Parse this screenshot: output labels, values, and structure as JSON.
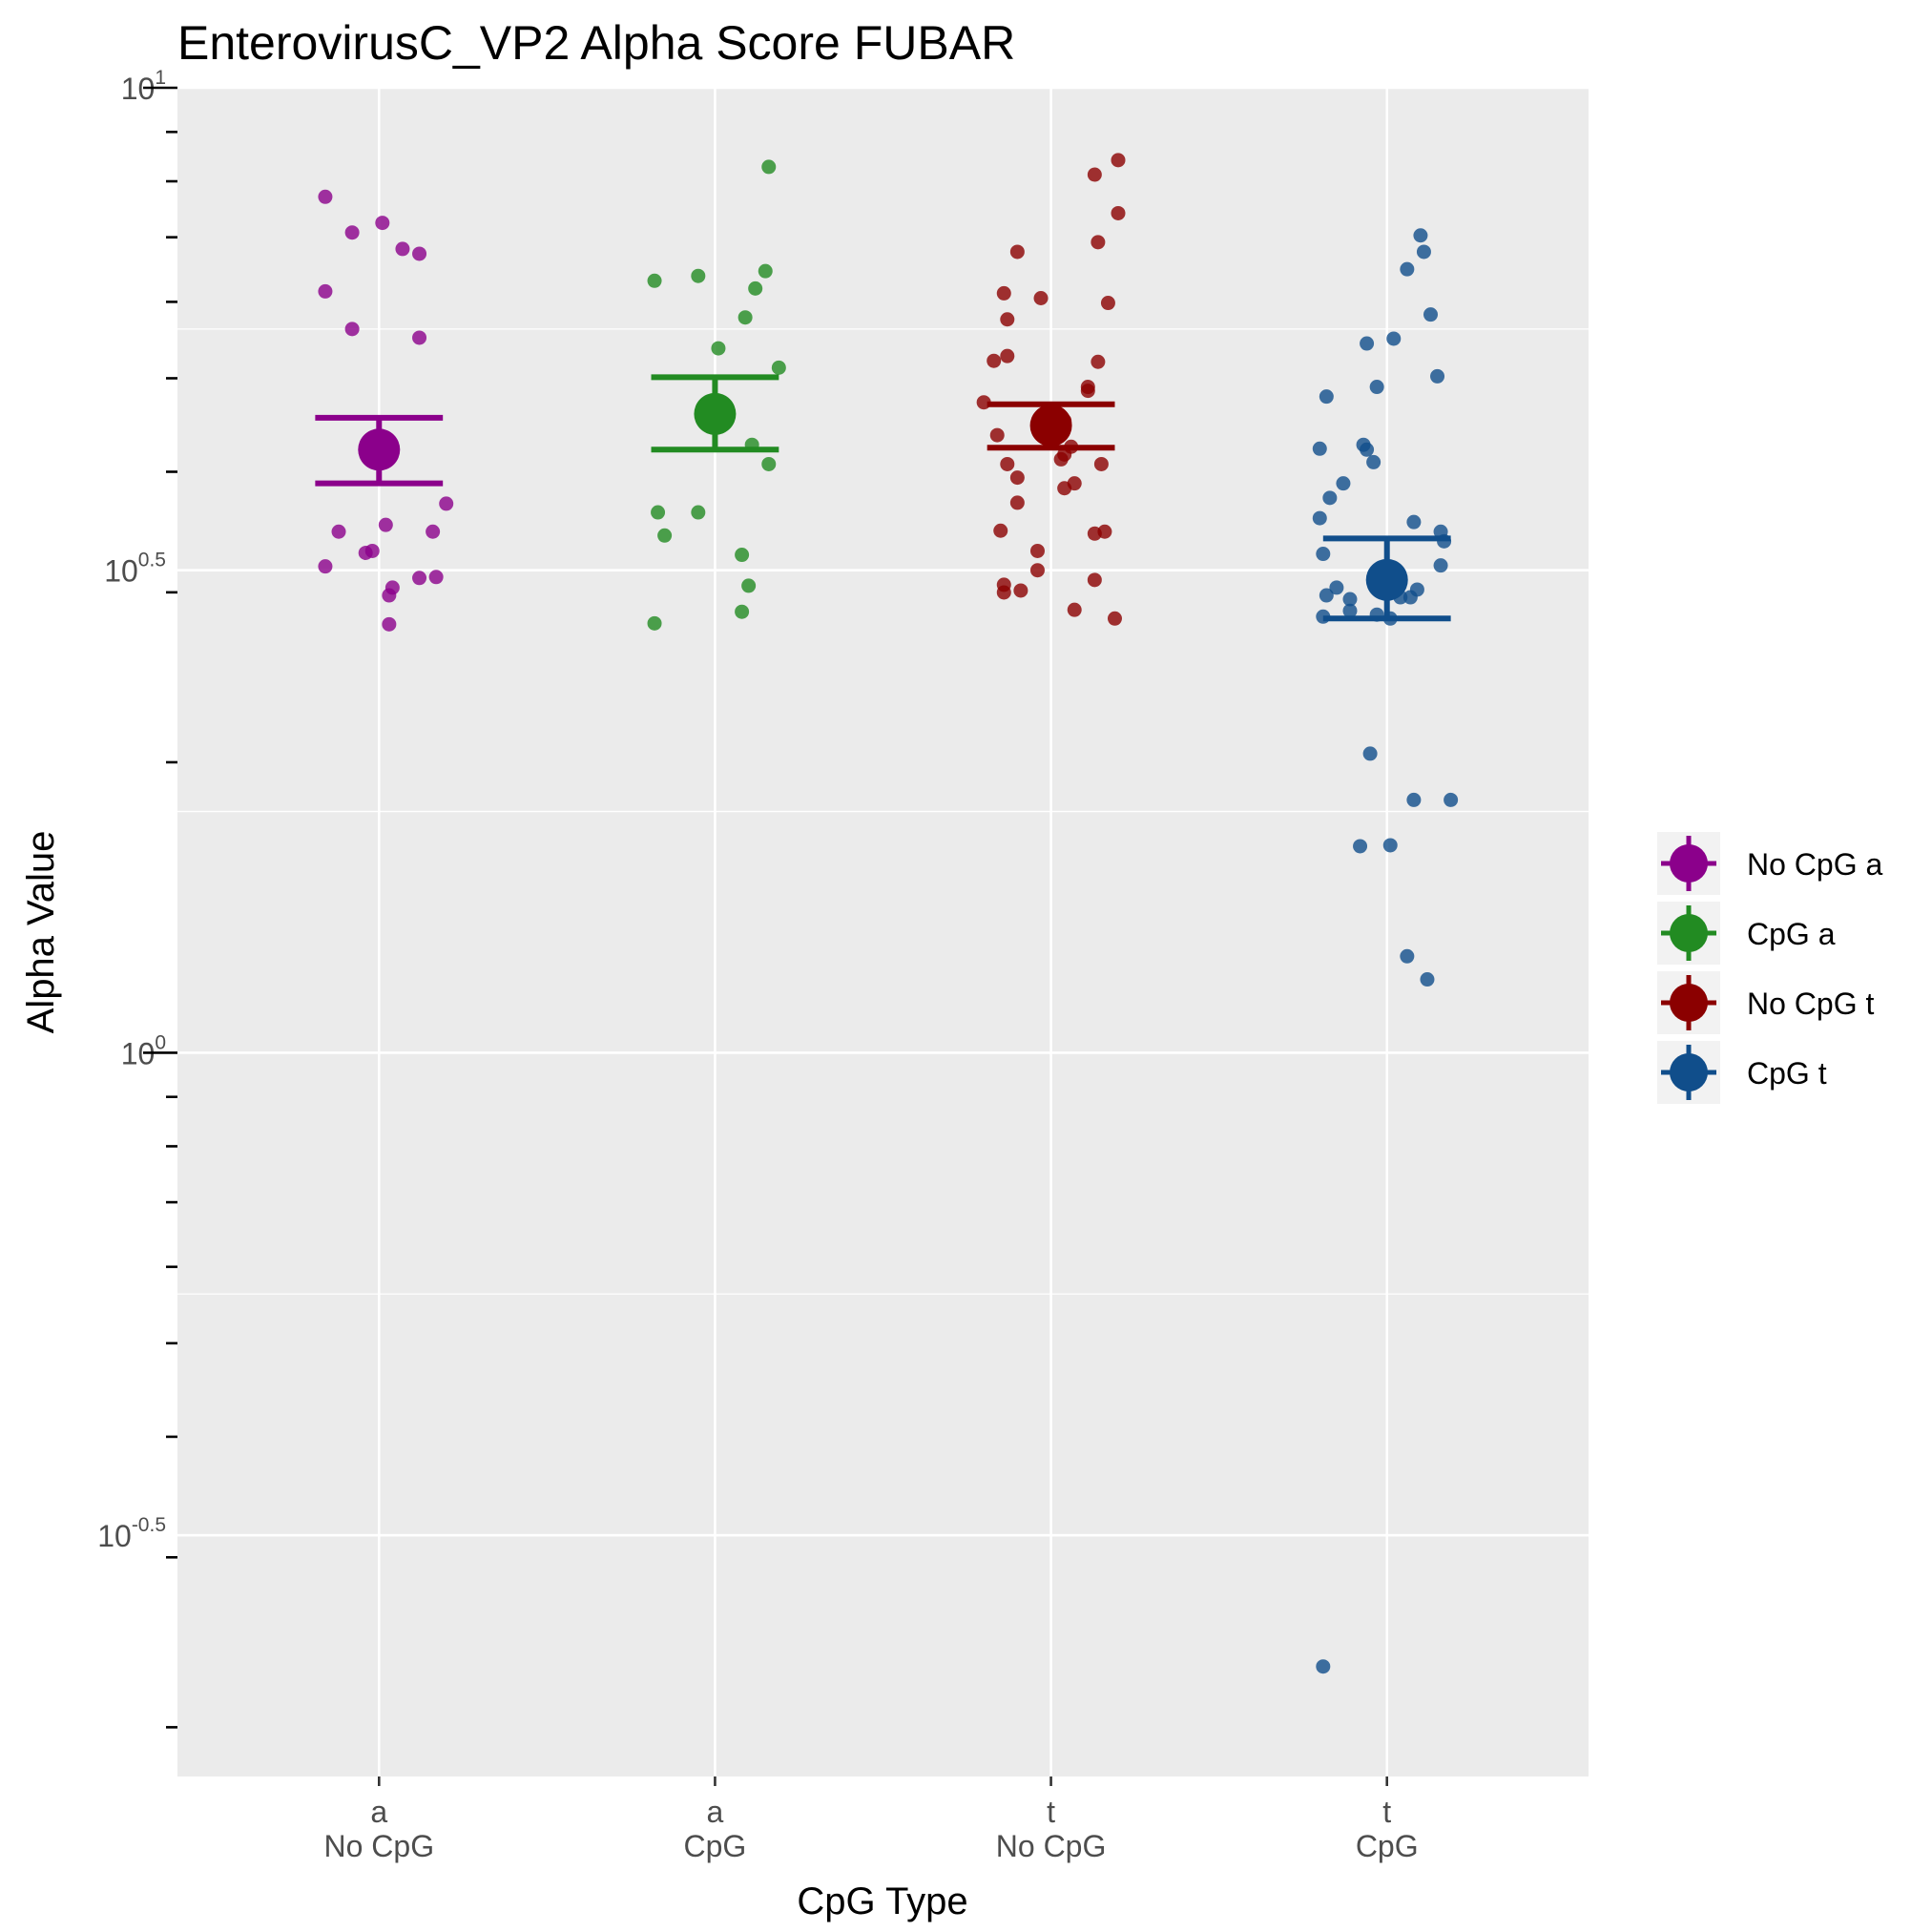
{
  "chart_data": {
    "type": "scatter",
    "title": "EnterovirusC_VP2 Alpha Score FUBAR",
    "xlabel": "CpG Type",
    "ylabel": "Alpha Value",
    "y_scale": "log10",
    "ylim_log10": [
      -0.75,
      1.0
    ],
    "y_major_ticks": [
      {
        "log10": 1,
        "base": "10",
        "exp": "1"
      },
      {
        "log10": 0.5,
        "base": "10",
        "exp": "0.5"
      },
      {
        "log10": 0,
        "base": "10",
        "exp": "0"
      },
      {
        "log10": -0.5,
        "base": "10",
        "exp": "-0.5"
      }
    ],
    "grid": true,
    "legend_position": "right",
    "categories": [
      {
        "line1": "a",
        "line2": "No CpG"
      },
      {
        "line1": "a",
        "line2": "CpG"
      },
      {
        "line1": "t",
        "line2": "No CpG"
      },
      {
        "line1": "t",
        "line2": "CpG"
      }
    ],
    "series": [
      {
        "name": "No CpG a",
        "color": "#8B008B",
        "mean_log10": 0.625,
        "ci_log10": [
          0.59,
          0.658
        ],
        "points": [
          [
            -0.16,
            0.887
          ],
          [
            -0.08,
            0.85
          ],
          [
            0.01,
            0.86
          ],
          [
            0.07,
            0.833
          ],
          [
            0.12,
            0.828
          ],
          [
            -0.16,
            0.789
          ],
          [
            -0.08,
            0.75
          ],
          [
            0.12,
            0.741
          ],
          [
            0.2,
            0.569
          ],
          [
            -0.12,
            0.54
          ],
          [
            0.02,
            0.547
          ],
          [
            0.16,
            0.54
          ],
          [
            -0.04,
            0.518
          ],
          [
            -0.02,
            0.52
          ],
          [
            -0.16,
            0.504
          ],
          [
            0.12,
            0.492
          ],
          [
            0.17,
            0.493
          ],
          [
            0.04,
            0.482
          ],
          [
            0.03,
            0.474
          ],
          [
            0.03,
            0.444
          ]
        ]
      },
      {
        "name": "CpG a",
        "color": "#228B22",
        "mean_log10": 0.662,
        "ci_log10": [
          0.625,
          0.7
        ],
        "points": [
          [
            0.16,
            0.918
          ],
          [
            0.15,
            0.81
          ],
          [
            -0.18,
            0.8
          ],
          [
            -0.05,
            0.805
          ],
          [
            0.12,
            0.792
          ],
          [
            0.09,
            0.762
          ],
          [
            0.01,
            0.73
          ],
          [
            0.19,
            0.71
          ],
          [
            0.11,
            0.63
          ],
          [
            0.16,
            0.61
          ],
          [
            -0.17,
            0.56
          ],
          [
            -0.05,
            0.56
          ],
          [
            -0.15,
            0.536
          ],
          [
            0.08,
            0.516
          ],
          [
            0.1,
            0.484
          ],
          [
            -0.18,
            0.445
          ],
          [
            0.08,
            0.457
          ]
        ]
      },
      {
        "name": "No CpG t",
        "color": "#8B0000",
        "mean_log10": 0.65,
        "ci_log10": [
          0.627,
          0.672
        ],
        "points": [
          [
            0.13,
            0.91
          ],
          [
            0.2,
            0.925
          ],
          [
            0.2,
            0.87
          ],
          [
            0.14,
            0.84
          ],
          [
            -0.1,
            0.83
          ],
          [
            -0.14,
            0.787
          ],
          [
            -0.03,
            0.782
          ],
          [
            0.17,
            0.777
          ],
          [
            -0.13,
            0.76
          ],
          [
            -0.13,
            0.722
          ],
          [
            -0.17,
            0.717
          ],
          [
            0.14,
            0.716
          ],
          [
            0.11,
            0.69
          ],
          [
            0.11,
            0.686
          ],
          [
            -0.2,
            0.674
          ],
          [
            0.04,
            0.655
          ],
          [
            -0.16,
            0.64
          ],
          [
            0.04,
            0.62
          ],
          [
            0.03,
            0.615
          ],
          [
            -0.13,
            0.61
          ],
          [
            0.15,
            0.61
          ],
          [
            0.06,
            0.628
          ],
          [
            -0.1,
            0.596
          ],
          [
            0.07,
            0.59
          ],
          [
            0.04,
            0.585
          ],
          [
            -0.1,
            0.57
          ],
          [
            0.16,
            0.54
          ],
          [
            -0.15,
            0.541
          ],
          [
            0.13,
            0.538
          ],
          [
            -0.04,
            0.52
          ],
          [
            -0.04,
            0.5
          ],
          [
            0.13,
            0.49
          ],
          [
            -0.14,
            0.485
          ],
          [
            -0.09,
            0.479
          ],
          [
            -0.14,
            0.477
          ],
          [
            0.07,
            0.459
          ],
          [
            0.19,
            0.45
          ]
        ]
      },
      {
        "name": "CpG t",
        "color": "#104E8B",
        "mean_log10": 0.49,
        "ci_log10": [
          0.45,
          0.533
        ],
        "points": [
          [
            0.1,
            0.847
          ],
          [
            0.11,
            0.83
          ],
          [
            0.06,
            0.812
          ],
          [
            0.13,
            0.765
          ],
          [
            0.02,
            0.74
          ],
          [
            -0.06,
            0.735
          ],
          [
            0.15,
            0.701
          ],
          [
            -0.03,
            0.69
          ],
          [
            -0.18,
            0.68
          ],
          [
            -0.07,
            0.63
          ],
          [
            -0.06,
            0.625
          ],
          [
            -0.2,
            0.626
          ],
          [
            -0.04,
            0.612
          ],
          [
            -0.13,
            0.59
          ],
          [
            -0.17,
            0.575
          ],
          [
            -0.2,
            0.554
          ],
          [
            0.08,
            0.55
          ],
          [
            0.16,
            0.54
          ],
          [
            0.17,
            0.53
          ],
          [
            -0.19,
            0.517
          ],
          [
            0.16,
            0.505
          ],
          [
            -0.15,
            0.482
          ],
          [
            -0.18,
            0.474
          ],
          [
            -0.11,
            0.47
          ],
          [
            0.04,
            0.472
          ],
          [
            0.07,
            0.472
          ],
          [
            0.09,
            0.48
          ],
          [
            -0.11,
            0.458
          ],
          [
            -0.19,
            0.452
          ],
          [
            -0.03,
            0.454
          ],
          [
            0.01,
            0.45
          ],
          [
            -0.05,
            0.31
          ],
          [
            0.08,
            0.262
          ],
          [
            0.19,
            0.262
          ],
          [
            -0.08,
            0.214
          ],
          [
            0.01,
            0.215
          ],
          [
            0.06,
            0.1
          ],
          [
            0.12,
            0.076
          ],
          [
            -0.19,
            -0.636
          ]
        ]
      }
    ]
  }
}
